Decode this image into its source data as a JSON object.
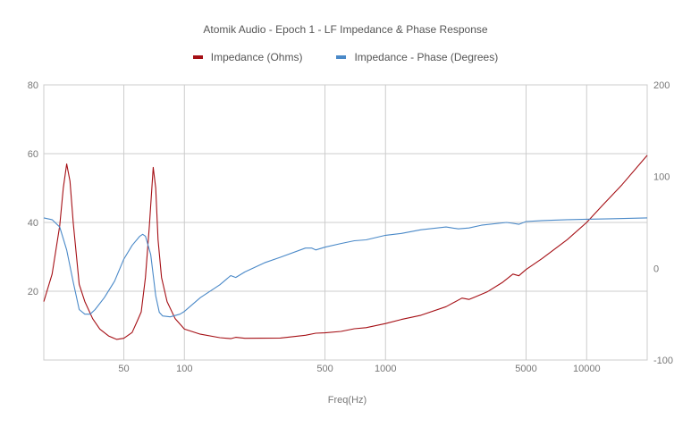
{
  "chart_data": {
    "type": "line",
    "title": "Atomik Audio - Epoch 1 - LF Impedance & Phase Response",
    "xlabel": "Freq(Hz)",
    "x_scale": "log",
    "xlim": [
      20,
      20000
    ],
    "x_ticks": [
      {
        "value": 50,
        "label": "50"
      },
      {
        "value": 100,
        "label": "100"
      },
      {
        "value": 500,
        "label": "500"
      },
      {
        "value": 1000,
        "label": "1000"
      },
      {
        "value": 5000,
        "label": "5000"
      },
      {
        "value": 10000,
        "label": "10000"
      }
    ],
    "y_left": {
      "ylim": [
        0,
        80
      ],
      "ticks": [
        {
          "value": 20,
          "label": "20"
        },
        {
          "value": 40,
          "label": "40"
        },
        {
          "value": 60,
          "label": "60"
        },
        {
          "value": 80,
          "label": "80"
        }
      ]
    },
    "y_right": {
      "ylim": [
        -100,
        200
      ],
      "ticks": [
        {
          "value": -100,
          "label": "-100"
        },
        {
          "value": 0,
          "label": "0"
        },
        {
          "value": 100,
          "label": "100"
        },
        {
          "value": 200,
          "label": "200"
        }
      ]
    },
    "grid": true,
    "legend_position": "top",
    "series": [
      {
        "name": "Impedance (Ohms)",
        "axis": "left",
        "color": "#a50f15",
        "points": [
          [
            20,
            17
          ],
          [
            22,
            25
          ],
          [
            24,
            39
          ],
          [
            25,
            50
          ],
          [
            26,
            57
          ],
          [
            27,
            52
          ],
          [
            28,
            40
          ],
          [
            30,
            22
          ],
          [
            32,
            17
          ],
          [
            35,
            12
          ],
          [
            38,
            9
          ],
          [
            42,
            7
          ],
          [
            46,
            6
          ],
          [
            50,
            6.3
          ],
          [
            55,
            8
          ],
          [
            58,
            11
          ],
          [
            61,
            14
          ],
          [
            64,
            24
          ],
          [
            67,
            39
          ],
          [
            70,
            56
          ],
          [
            72,
            50
          ],
          [
            74,
            35
          ],
          [
            77,
            24
          ],
          [
            82,
            17
          ],
          [
            90,
            12
          ],
          [
            100,
            9
          ],
          [
            120,
            7.5
          ],
          [
            150,
            6.5
          ],
          [
            170,
            6.2
          ],
          [
            180,
            6.6
          ],
          [
            200,
            6.3
          ],
          [
            300,
            6.4
          ],
          [
            400,
            7.2
          ],
          [
            450,
            7.8
          ],
          [
            500,
            7.9
          ],
          [
            600,
            8.3
          ],
          [
            700,
            9.1
          ],
          [
            800,
            9.4
          ],
          [
            1000,
            10.6
          ],
          [
            1200,
            11.8
          ],
          [
            1500,
            13
          ],
          [
            2000,
            15.5
          ],
          [
            2400,
            18
          ],
          [
            2600,
            17.6
          ],
          [
            2800,
            18.4
          ],
          [
            3200,
            19.8
          ],
          [
            3800,
            22.5
          ],
          [
            4300,
            25
          ],
          [
            4600,
            24.5
          ],
          [
            5000,
            26.3
          ],
          [
            6000,
            29.5
          ],
          [
            8000,
            35
          ],
          [
            10000,
            40
          ],
          [
            12000,
            45
          ],
          [
            15000,
            51
          ],
          [
            20000,
            59.5
          ]
        ]
      },
      {
        "name": "Impedance - Phase (Degrees)",
        "axis": "right",
        "color": "#4a89c8",
        "points": [
          [
            20,
            55
          ],
          [
            22,
            53
          ],
          [
            24,
            45
          ],
          [
            26,
            20
          ],
          [
            28,
            -15
          ],
          [
            30,
            -45
          ],
          [
            32,
            -50
          ],
          [
            34,
            -50
          ],
          [
            36,
            -45
          ],
          [
            40,
            -32
          ],
          [
            45,
            -14
          ],
          [
            50,
            10
          ],
          [
            55,
            25
          ],
          [
            60,
            35
          ],
          [
            62,
            37
          ],
          [
            64,
            35
          ],
          [
            68,
            15
          ],
          [
            72,
            -30
          ],
          [
            75,
            -48
          ],
          [
            78,
            -52
          ],
          [
            85,
            -53
          ],
          [
            95,
            -50
          ],
          [
            100,
            -47
          ],
          [
            120,
            -32
          ],
          [
            150,
            -18
          ],
          [
            170,
            -8
          ],
          [
            180,
            -10
          ],
          [
            200,
            -4
          ],
          [
            250,
            6
          ],
          [
            300,
            12
          ],
          [
            400,
            22
          ],
          [
            430,
            22
          ],
          [
            450,
            20
          ],
          [
            500,
            23
          ],
          [
            600,
            27
          ],
          [
            700,
            30
          ],
          [
            800,
            31
          ],
          [
            1000,
            36
          ],
          [
            1200,
            38
          ],
          [
            1500,
            42
          ],
          [
            2000,
            45
          ],
          [
            2300,
            43
          ],
          [
            2600,
            44
          ],
          [
            3000,
            47
          ],
          [
            4000,
            50
          ],
          [
            4300,
            49
          ],
          [
            4600,
            48
          ],
          [
            5000,
            51
          ],
          [
            6000,
            52
          ],
          [
            8000,
            53
          ],
          [
            10000,
            53.5
          ],
          [
            13000,
            54
          ],
          [
            20000,
            55
          ]
        ]
      }
    ]
  }
}
